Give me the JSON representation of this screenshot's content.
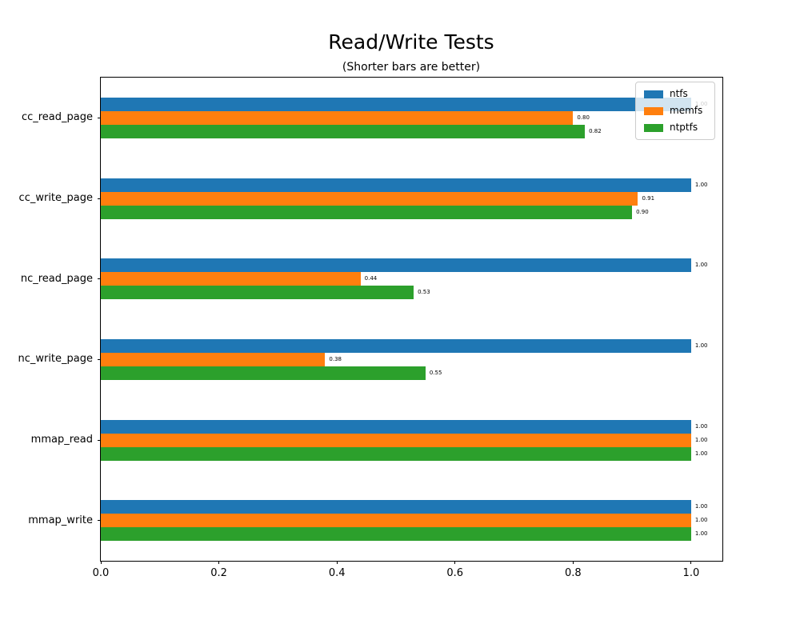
{
  "title": "Read/Write Tests",
  "subtitle": "(Shorter bars are better)",
  "chart_data": {
    "type": "bar",
    "orientation": "horizontal",
    "title": "Read/Write Tests",
    "subtitle": "(Shorter bars are better)",
    "categories": [
      "cc_read_page",
      "cc_write_page",
      "nc_read_page",
      "nc_write_page",
      "mmap_read",
      "mmap_write"
    ],
    "series": [
      {
        "name": "ntfs",
        "color": "#1f77b4",
        "values": [
          1.0,
          1.0,
          1.0,
          1.0,
          1.0,
          1.0
        ]
      },
      {
        "name": "memfs",
        "color": "#ff7f0e",
        "values": [
          0.8,
          0.91,
          0.44,
          0.38,
          1.0,
          1.0
        ]
      },
      {
        "name": "ntptfs",
        "color": "#2ca02c",
        "values": [
          0.82,
          0.9,
          0.53,
          0.55,
          1.0,
          1.0
        ]
      }
    ],
    "bar_label_format": "0.00",
    "xlim": [
      0,
      1.053
    ],
    "xticks": [
      0.0,
      0.2,
      0.4,
      0.6,
      0.8,
      1.0
    ],
    "xtick_labels": [
      "0.0",
      "0.2",
      "0.4",
      "0.6",
      "0.8",
      "1.0"
    ],
    "xlabel": "",
    "ylabel": "",
    "grid": false,
    "legend": {
      "position": "upper right",
      "entries": [
        "ntfs",
        "memfs",
        "ntptfs"
      ]
    }
  }
}
